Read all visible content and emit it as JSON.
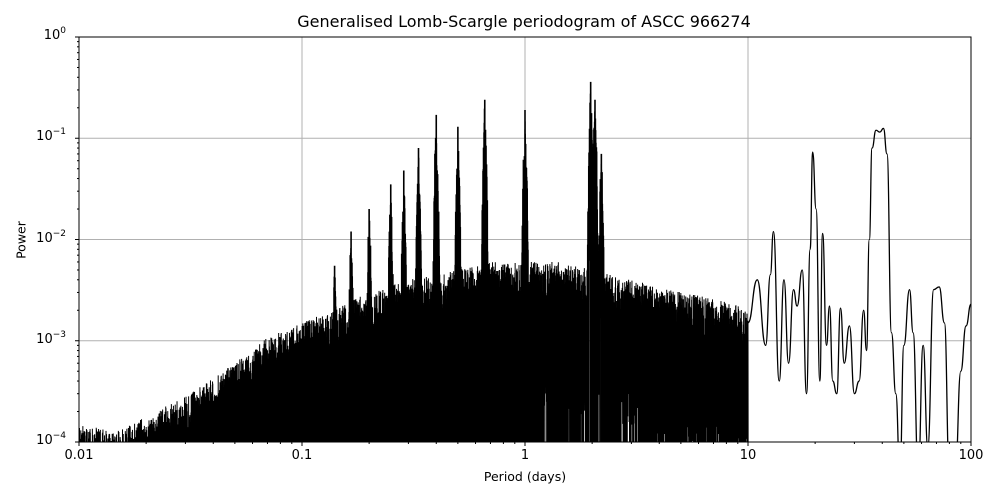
{
  "chart_data": {
    "type": "line",
    "title": "Generalised Lomb-Scargle periodogram of ASCC 966274",
    "xlabel": "Period (days)",
    "ylabel": "Power",
    "xscale": "log",
    "yscale": "log",
    "xlim": [
      0.01,
      100
    ],
    "ylim": [
      0.0001,
      1
    ],
    "grid": true,
    "legend": null,
    "x_ticks": [
      "0.01",
      "0.1",
      "1",
      "10",
      "100"
    ],
    "y_ticks": [
      {
        "base": "10",
        "exp": "−4",
        "value": 0.0001
      },
      {
        "base": "10",
        "exp": "−3",
        "value": 0.001
      },
      {
        "base": "10",
        "exp": "−2",
        "value": 0.01
      },
      {
        "base": "10",
        "exp": "−1",
        "value": 0.1
      },
      {
        "base": "10",
        "exp": "0",
        "value": 1
      }
    ],
    "line_color": "#000000",
    "grid_color": "#b0b0b0",
    "envelope": {
      "description": "Dense alias forest; approximate upper envelope of noise floor",
      "x": [
        0.01,
        0.015,
        0.02,
        0.03,
        0.05,
        0.07,
        0.1,
        0.15,
        0.2,
        0.3,
        0.5,
        0.7,
        1.0,
        1.5,
        2.0,
        3.0,
        5.0,
        8.0,
        10.0
      ],
      "y": [
        0.00015,
        0.00013,
        0.00018,
        0.00028,
        0.0006,
        0.0011,
        0.0015,
        0.0022,
        0.003,
        0.004,
        0.005,
        0.006,
        0.006,
        0.006,
        0.005,
        0.004,
        0.003,
        0.0025,
        0.002
      ]
    },
    "peaks": [
      {
        "period": 0.14,
        "power": 0.0055
      },
      {
        "period": 0.166,
        "power": 0.012
      },
      {
        "period": 0.2,
        "power": 0.02
      },
      {
        "period": 0.25,
        "power": 0.035
      },
      {
        "period": 0.286,
        "power": 0.048
      },
      {
        "period": 0.333,
        "power": 0.08
      },
      {
        "period": 0.4,
        "power": 0.17
      },
      {
        "period": 0.5,
        "power": 0.13
      },
      {
        "period": 0.66,
        "power": 0.24
      },
      {
        "period": 1.0,
        "power": 0.19
      },
      {
        "period": 1.97,
        "power": 0.36
      },
      {
        "period": 2.06,
        "power": 0.24
      },
      {
        "period": 2.2,
        "power": 0.07
      },
      {
        "period": 13.0,
        "power": 0.012
      },
      {
        "period": 19.5,
        "power": 0.073
      },
      {
        "period": 21.5,
        "power": 0.011
      },
      {
        "period": 38.0,
        "power": 0.12
      },
      {
        "period": 41.0,
        "power": 0.125
      },
      {
        "period": 55.0,
        "power": 0.0032
      },
      {
        "period": 72.0,
        "power": 0.0034
      },
      {
        "period": 100.0,
        "power": 0.0023
      }
    ],
    "long_period_curve": {
      "x": [
        10,
        11,
        12,
        12.6,
        13,
        13.8,
        14.5,
        15.2,
        16,
        16.6,
        17.5,
        18.3,
        19.0,
        19.5,
        20.2,
        21,
        21.6,
        22.5,
        23.2,
        24,
        25,
        26,
        27,
        28.5,
        30,
        31.5,
        33,
        34,
        35,
        36,
        37.5,
        39,
        40.5,
        42,
        44,
        46,
        48,
        50,
        53,
        55,
        58,
        61,
        64,
        68,
        72,
        76,
        80,
        85,
        90,
        95,
        100
      ],
      "y": [
        0.0015,
        0.004,
        0.0009,
        0.0045,
        0.012,
        0.0004,
        0.004,
        0.0006,
        0.0032,
        0.0022,
        0.005,
        0.0003,
        0.008,
        0.073,
        0.02,
        0.0004,
        0.0115,
        0.0009,
        0.0022,
        0.0004,
        0.0003,
        0.0021,
        0.0006,
        0.0014,
        0.0003,
        0.0004,
        0.002,
        0.0008,
        0.01,
        0.08,
        0.12,
        0.115,
        0.125,
        0.07,
        0.0012,
        0.0003,
        5e-05,
        0.0009,
        0.0032,
        0.0012,
        5e-05,
        0.0009,
        9e-05,
        0.0032,
        0.0034,
        0.0015,
        5e-05,
        5e-05,
        0.0005,
        0.0014,
        0.0023
      ]
    }
  }
}
